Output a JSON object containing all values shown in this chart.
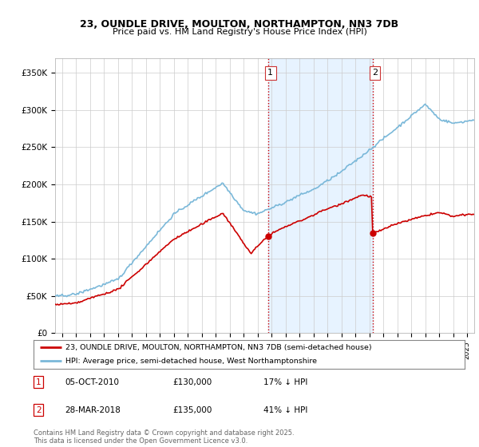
{
  "title_line1": "23, OUNDLE DRIVE, MOULTON, NORTHAMPTON, NN3 7DB",
  "title_line2": "Price paid vs. HM Land Registry's House Price Index (HPI)",
  "ylabel_ticks": [
    "£0",
    "£50K",
    "£100K",
    "£150K",
    "£200K",
    "£250K",
    "£300K",
    "£350K"
  ],
  "ytick_values": [
    0,
    50000,
    100000,
    150000,
    200000,
    250000,
    300000,
    350000
  ],
  "ylim": [
    0,
    370000
  ],
  "xlim_start": 1995.5,
  "xlim_end": 2025.5,
  "sale1_date": 2010.76,
  "sale1_price": 130000,
  "sale1_label": "1",
  "sale2_date": 2018.23,
  "sale2_price": 135000,
  "sale2_label": "2",
  "background_color": "#ffffff",
  "plot_bg_color": "#ffffff",
  "grid_color": "#cccccc",
  "hpi_color": "#7ab8d9",
  "price_color": "#cc0000",
  "vline_color": "#cc0000",
  "highlight_color": "#ddeeff",
  "legend_entry1": "23, OUNDLE DRIVE, MOULTON, NORTHAMPTON, NN3 7DB (semi-detached house)",
  "legend_entry2": "HPI: Average price, semi-detached house, West Northamptonshire",
  "annotation1_date": "05-OCT-2010",
  "annotation1_price": "£130,000",
  "annotation1_hpi": "17% ↓ HPI",
  "annotation2_date": "28-MAR-2018",
  "annotation2_price": "£135,000",
  "annotation2_hpi": "41% ↓ HPI",
  "footnote": "Contains HM Land Registry data © Crown copyright and database right 2025.\nThis data is licensed under the Open Government Licence v3.0."
}
